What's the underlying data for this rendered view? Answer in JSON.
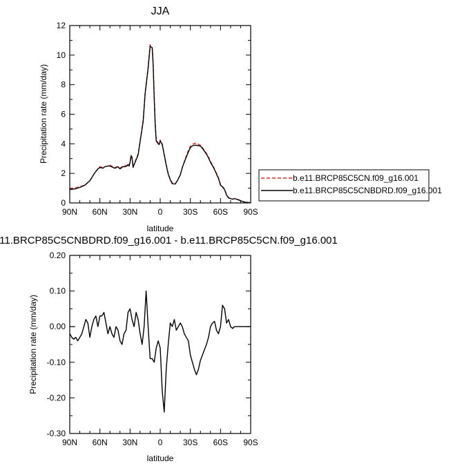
{
  "chart_data": [
    {
      "type": "line",
      "title": "JJA",
      "xlabel": "latitude",
      "ylabel": "Precipitation rate (mm/day)",
      "xlim": [
        90,
        -90
      ],
      "ylim": [
        0,
        12
      ],
      "x_ticks": [
        {
          "value": 90,
          "label": "90N"
        },
        {
          "value": 60,
          "label": "60N"
        },
        {
          "value": 30,
          "label": "30N"
        },
        {
          "value": 0,
          "label": "0"
        },
        {
          "value": -30,
          "label": "30S"
        },
        {
          "value": -60,
          "label": "60S"
        },
        {
          "value": -90,
          "label": "90S"
        }
      ],
      "y_ticks": [
        {
          "value": 0,
          "label": "0"
        },
        {
          "value": 2,
          "label": "2"
        },
        {
          "value": 4,
          "label": "4"
        },
        {
          "value": 6,
          "label": "6"
        },
        {
          "value": 8,
          "label": "8"
        },
        {
          "value": 10,
          "label": "10"
        },
        {
          "value": 12,
          "label": "12"
        }
      ],
      "legend_position": "right",
      "series": [
        {
          "name": "b.e11.BRCP85C5CN.f09_g16.001",
          "color": "#e8201a",
          "dash": "dashed",
          "x": [
            90,
            85,
            80,
            75,
            70,
            65,
            62,
            60,
            57,
            55,
            52,
            50,
            47,
            45,
            42,
            40,
            37,
            35,
            33,
            32,
            31,
            30,
            29,
            28,
            27,
            25,
            22,
            20,
            17,
            15,
            12,
            10,
            8,
            7,
            6,
            5,
            4,
            3,
            2,
            1,
            0,
            -2,
            -4,
            -6,
            -8,
            -10,
            -12,
            -15,
            -17,
            -20,
            -22,
            -25,
            -28,
            -30,
            -33,
            -36,
            -40,
            -42,
            -44,
            -46,
            -48,
            -50,
            -53,
            -55,
            -58,
            -60,
            -62,
            -64,
            -66,
            -68,
            -70,
            -72,
            -74,
            -76,
            -78,
            -80,
            -82,
            -84,
            -86,
            -88,
            -90
          ],
          "y": [
            0.95,
            1.0,
            1.1,
            1.2,
            1.5,
            2.05,
            2.3,
            2.45,
            2.4,
            2.45,
            2.5,
            2.55,
            2.45,
            2.4,
            2.45,
            2.35,
            2.5,
            2.5,
            2.55,
            2.6,
            2.5,
            2.7,
            3.2,
            3.1,
            2.45,
            2.8,
            3.3,
            4.2,
            5.6,
            7.5,
            9.2,
            10.7,
            10.5,
            9.5,
            7.3,
            5.5,
            4.3,
            4.15,
            4.05,
            4.0,
            4.25,
            4.0,
            3.3,
            2.6,
            2.0,
            1.6,
            1.35,
            1.3,
            1.5,
            1.9,
            2.4,
            3.0,
            3.55,
            3.85,
            4.0,
            4.05,
            3.9,
            3.75,
            3.55,
            3.35,
            3.1,
            2.8,
            2.45,
            2.15,
            1.7,
            1.25,
            1.1,
            0.95,
            0.55,
            0.35,
            0.3,
            0.25,
            0.3,
            0.25,
            0.22,
            0.15,
            0.1,
            0.05,
            0.04,
            0.03,
            0.02
          ]
        },
        {
          "name": "b.e11.BRCP85C5CNBDRD.f09_g16.001",
          "color": "#000000",
          "dash": "solid",
          "x": [
            90,
            85,
            80,
            75,
            70,
            65,
            62,
            60,
            57,
            55,
            52,
            50,
            47,
            45,
            42,
            40,
            37,
            35,
            33,
            32,
            31,
            30,
            29,
            28,
            27,
            25,
            22,
            20,
            17,
            15,
            12,
            10,
            8,
            7,
            6,
            5,
            4,
            3,
            2,
            1,
            0,
            -2,
            -4,
            -6,
            -8,
            -10,
            -12,
            -15,
            -17,
            -20,
            -22,
            -25,
            -28,
            -30,
            -33,
            -36,
            -40,
            -42,
            -44,
            -46,
            -48,
            -50,
            -53,
            -55,
            -58,
            -60,
            -62,
            -64,
            -66,
            -68,
            -70,
            -72,
            -74,
            -76,
            -78,
            -80,
            -82,
            -84,
            -86,
            -88,
            -90
          ],
          "y": [
            0.9,
            0.95,
            1.05,
            1.2,
            1.5,
            2.05,
            2.3,
            2.4,
            2.35,
            2.45,
            2.5,
            2.5,
            2.4,
            2.35,
            2.45,
            2.3,
            2.45,
            2.45,
            2.5,
            2.6,
            2.5,
            2.75,
            3.2,
            3.05,
            2.4,
            2.75,
            3.25,
            4.15,
            5.5,
            7.4,
            9.1,
            10.6,
            10.5,
            9.3,
            7.1,
            5.3,
            4.2,
            4.1,
            4.0,
            3.95,
            4.2,
            3.95,
            3.25,
            2.55,
            1.95,
            1.55,
            1.3,
            1.28,
            1.5,
            1.9,
            2.4,
            2.95,
            3.45,
            3.75,
            3.9,
            3.9,
            3.85,
            3.7,
            3.5,
            3.3,
            3.05,
            2.75,
            2.4,
            2.1,
            1.65,
            1.2,
            1.08,
            0.9,
            0.52,
            0.33,
            0.3,
            0.25,
            0.3,
            0.25,
            0.2,
            0.15,
            0.1,
            0.05,
            0.04,
            0.03,
            0.02
          ]
        }
      ]
    },
    {
      "type": "line",
      "title": "11.BRCP85C5CNBDRD.f09_g16.001 - b.e11.BRCP85C5CN.f09_g16.001",
      "xlabel": "latitude",
      "ylabel": "Precipitation rate (mm/day)",
      "xlim": [
        90,
        -90
      ],
      "ylim": [
        -0.3,
        0.2
      ],
      "x_ticks": [
        {
          "value": 90,
          "label": "90N"
        },
        {
          "value": 60,
          "label": "60N"
        },
        {
          "value": 30,
          "label": "30N"
        },
        {
          "value": 0,
          "label": "0"
        },
        {
          "value": -30,
          "label": "30S"
        },
        {
          "value": -60,
          "label": "60S"
        },
        {
          "value": -90,
          "label": "90S"
        }
      ],
      "y_ticks": [
        {
          "value": 0.2,
          "label": "0.20"
        },
        {
          "value": 0.1,
          "label": "0.10"
        },
        {
          "value": 0.0,
          "label": "0.00"
        },
        {
          "value": -0.1,
          "label": "-0.10"
        },
        {
          "value": -0.2,
          "label": "-0.20"
        },
        {
          "value": -0.3,
          "label": "-0.30"
        }
      ],
      "series": [
        {
          "color": "#000000",
          "dash": "solid",
          "x": [
            90,
            88,
            86,
            84,
            82,
            80,
            78,
            76,
            74,
            72,
            70,
            68,
            66,
            64,
            62,
            60,
            58,
            56,
            54,
            52,
            50,
            48,
            46,
            44,
            42,
            40,
            38,
            36,
            34,
            32,
            30,
            28,
            26,
            24,
            22,
            20,
            18,
            16,
            14,
            12,
            10,
            8,
            6,
            4,
            2,
            0,
            -2,
            -4,
            -6,
            -8,
            -10,
            -12,
            -14,
            -16,
            -18,
            -20,
            -22,
            -24,
            -26,
            -28,
            -30,
            -32,
            -34,
            -36,
            -38,
            -40,
            -42,
            -44,
            -46,
            -48,
            -50,
            -52,
            -54,
            -56,
            -58,
            -60,
            -62,
            -64,
            -66,
            -68,
            -70,
            -72,
            -74,
            -76,
            -78,
            -80,
            -82,
            -84,
            -86,
            -88,
            -90
          ],
          "y": [
            -0.02,
            -0.03,
            -0.035,
            -0.03,
            -0.04,
            -0.03,
            -0.02,
            0.0,
            0.02,
            0.01,
            -0.03,
            0.0,
            0.02,
            0.03,
            0.0,
            0.03,
            0.03,
            0.04,
            0.01,
            -0.02,
            0.0,
            -0.02,
            -0.03,
            0.0,
            -0.01,
            -0.04,
            -0.05,
            -0.02,
            -0.01,
            0.04,
            0.05,
            0.02,
            0.0,
            0.04,
            0.02,
            -0.02,
            -0.05,
            0.0,
            0.1,
            0.0,
            -0.09,
            -0.09,
            -0.1,
            -0.06,
            -0.04,
            -0.06,
            -0.18,
            -0.24,
            -0.12,
            -0.05,
            0.01,
            0.0,
            0.02,
            -0.01,
            0.0,
            0.01,
            0.0,
            -0.02,
            -0.03,
            -0.04,
            -0.08,
            -0.1,
            -0.12,
            -0.135,
            -0.12,
            -0.095,
            -0.08,
            -0.065,
            -0.05,
            -0.03,
            0.0,
            0.01,
            0.015,
            -0.01,
            -0.02,
            0.0,
            0.06,
            0.05,
            0.01,
            0.02,
            0.0,
            -0.005,
            0.0,
            0.0,
            0.0,
            0.0,
            0.0,
            0.0,
            0.0,
            0.0,
            0.0
          ]
        }
      ]
    }
  ]
}
